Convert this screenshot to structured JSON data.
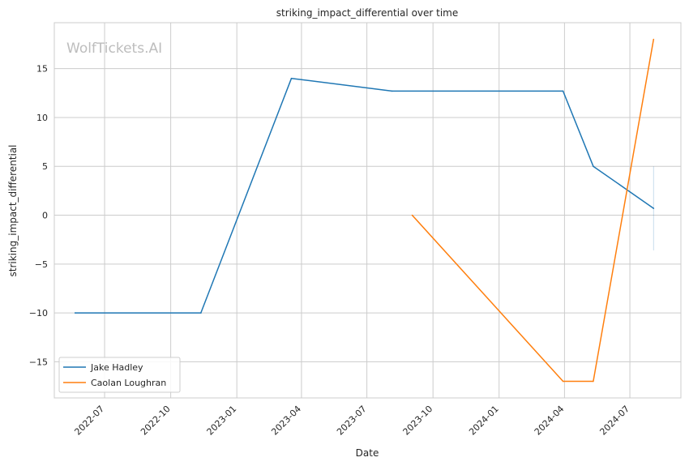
{
  "chart_data": {
    "type": "line",
    "title": "striking_impact_differential over time",
    "xlabel": "Date",
    "ylabel": "striking_impact_differential",
    "watermark": "WolfTickets.AI",
    "x_ticks": [
      "2022-07",
      "2022-10",
      "2023-01",
      "2023-04",
      "2023-07",
      "2023-10",
      "2024-01",
      "2024-04",
      "2024-07"
    ],
    "y_ticks": [
      -15,
      -10,
      -5,
      0,
      5,
      10,
      15
    ],
    "xlim": [
      "2022-04-22",
      "2024-09-10"
    ],
    "ylim": [
      -18.7,
      19.7
    ],
    "grid": true,
    "legend_position": "lower-left",
    "series": [
      {
        "name": "Jake Hadley",
        "color": "#1f77b4",
        "points": [
          {
            "x": "2022-05-21",
            "y": -10
          },
          {
            "x": "2022-11-12",
            "y": -10
          },
          {
            "x": "2023-03-18",
            "y": 14
          },
          {
            "x": "2023-08-05",
            "y": 12.7
          },
          {
            "x": "2024-03-30",
            "y": 12.7
          },
          {
            "x": "2024-05-11",
            "y": 5
          },
          {
            "x": "2024-08-03",
            "y": 0.7
          }
        ],
        "error_band": {
          "x": "2024-08-03",
          "low": -3.6,
          "high": 5
        }
      },
      {
        "name": "Caolan Loughran",
        "color": "#ff7f0e",
        "points": [
          {
            "x": "2023-09-02",
            "y": 0
          },
          {
            "x": "2024-03-30",
            "y": -17
          },
          {
            "x": "2024-05-11",
            "y": -17
          },
          {
            "x": "2024-08-03",
            "y": 18
          }
        ]
      }
    ]
  }
}
